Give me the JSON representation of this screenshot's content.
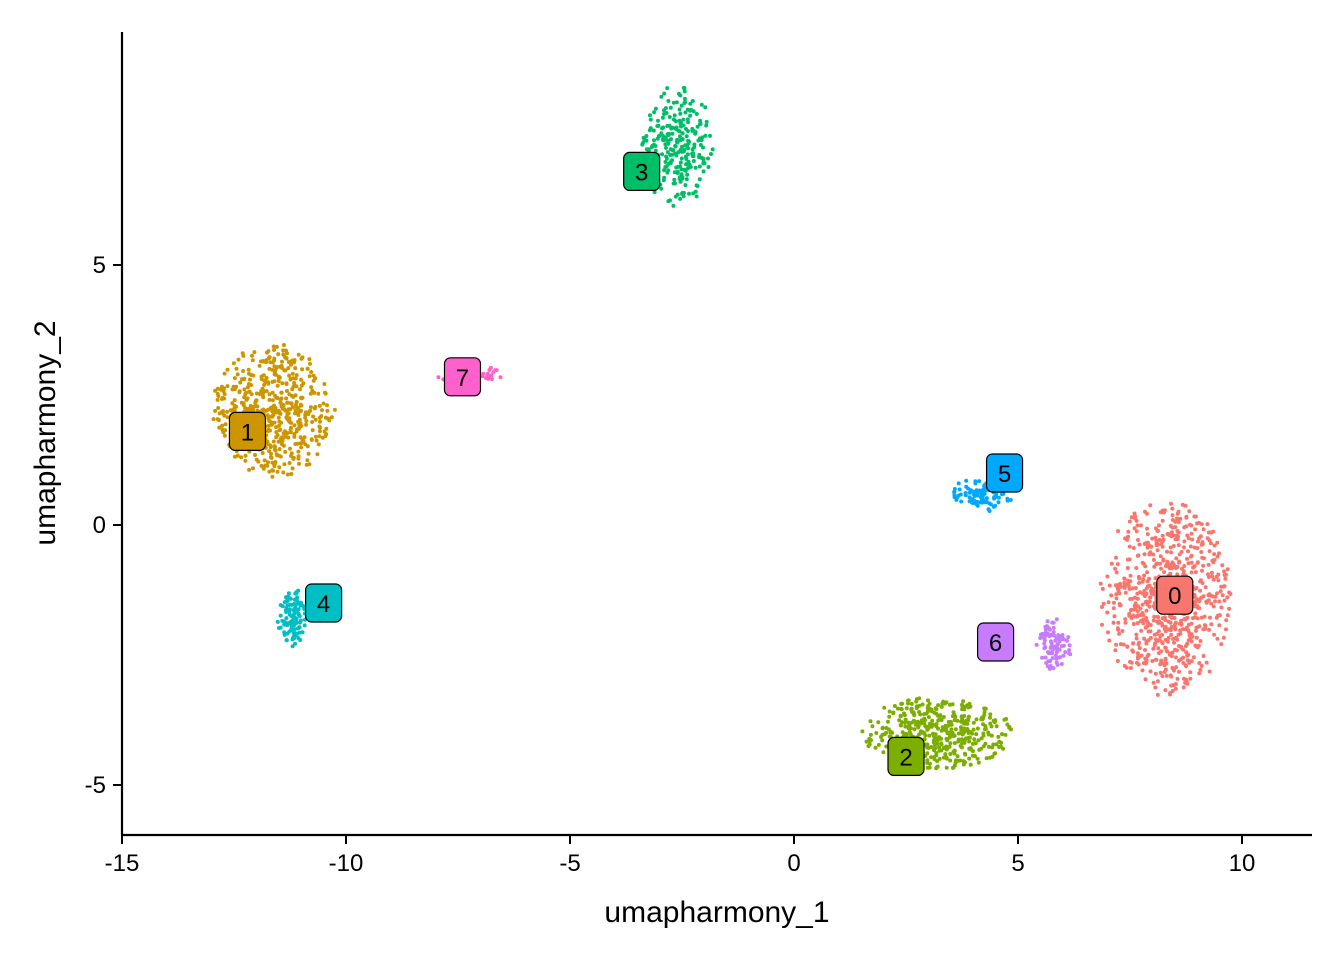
{
  "chart_data": {
    "type": "scatter",
    "title": "",
    "xlabel": "umapharmony_1",
    "ylabel": "umapharmony_2",
    "xlim": [
      -15,
      11.5
    ],
    "ylim": [
      -6,
      9.5
    ],
    "x_ticks": [
      -15,
      -10,
      -5,
      0,
      5,
      10
    ],
    "x_tick_labels": [
      "-15",
      "-10",
      "-5",
      "0",
      "5",
      "10"
    ],
    "y_ticks": [
      -5,
      0,
      5
    ],
    "y_tick_labels": [
      "-5",
      "0",
      "5"
    ],
    "grid": false,
    "legend": "none",
    "clusters": [
      {
        "label": "0",
        "color": "#F8766D",
        "label_pos": [
          8.5,
          -1.35
        ],
        "center": [
          8.3,
          -1.4
        ],
        "spread": [
          1.5,
          1.9
        ],
        "n": 750
      },
      {
        "label": "1",
        "color": "#CD9600",
        "label_pos": [
          -12.2,
          1.8
        ],
        "center": [
          -11.6,
          2.2
        ],
        "spread": [
          1.4,
          1.3
        ],
        "n": 550
      },
      {
        "label": "2",
        "color": "#7CAE00",
        "label_pos": [
          2.5,
          -4.45
        ],
        "center": [
          3.2,
          -4.0
        ],
        "spread": [
          1.7,
          0.7
        ],
        "n": 450
      },
      {
        "label": "3",
        "color": "#00BE67",
        "label_pos": [
          -3.4,
          6.8
        ],
        "center": [
          -2.6,
          7.3
        ],
        "spread": [
          0.8,
          1.2
        ],
        "n": 260
      },
      {
        "label": "4",
        "color": "#00BFC4",
        "label_pos": [
          -10.5,
          -1.5
        ],
        "center": [
          -11.2,
          -1.8
        ],
        "spread": [
          0.35,
          0.6
        ],
        "n": 110
      },
      {
        "label": "5",
        "color": "#00A9FF",
        "label_pos": [
          4.7,
          1.0
        ],
        "center": [
          4.2,
          0.6
        ],
        "spread": [
          0.7,
          0.35
        ],
        "n": 110
      },
      {
        "label": "6",
        "color": "#C77CFF",
        "label_pos": [
          4.5,
          -2.25
        ],
        "center": [
          5.8,
          -2.3
        ],
        "spread": [
          0.4,
          0.5
        ],
        "n": 90
      },
      {
        "label": "7",
        "color": "#FF61CC",
        "label_pos": [
          -7.4,
          2.85
        ],
        "center": [
          -7.3,
          2.9
        ],
        "spread": [
          0.8,
          0.3
        ],
        "n": 60
      }
    ]
  }
}
